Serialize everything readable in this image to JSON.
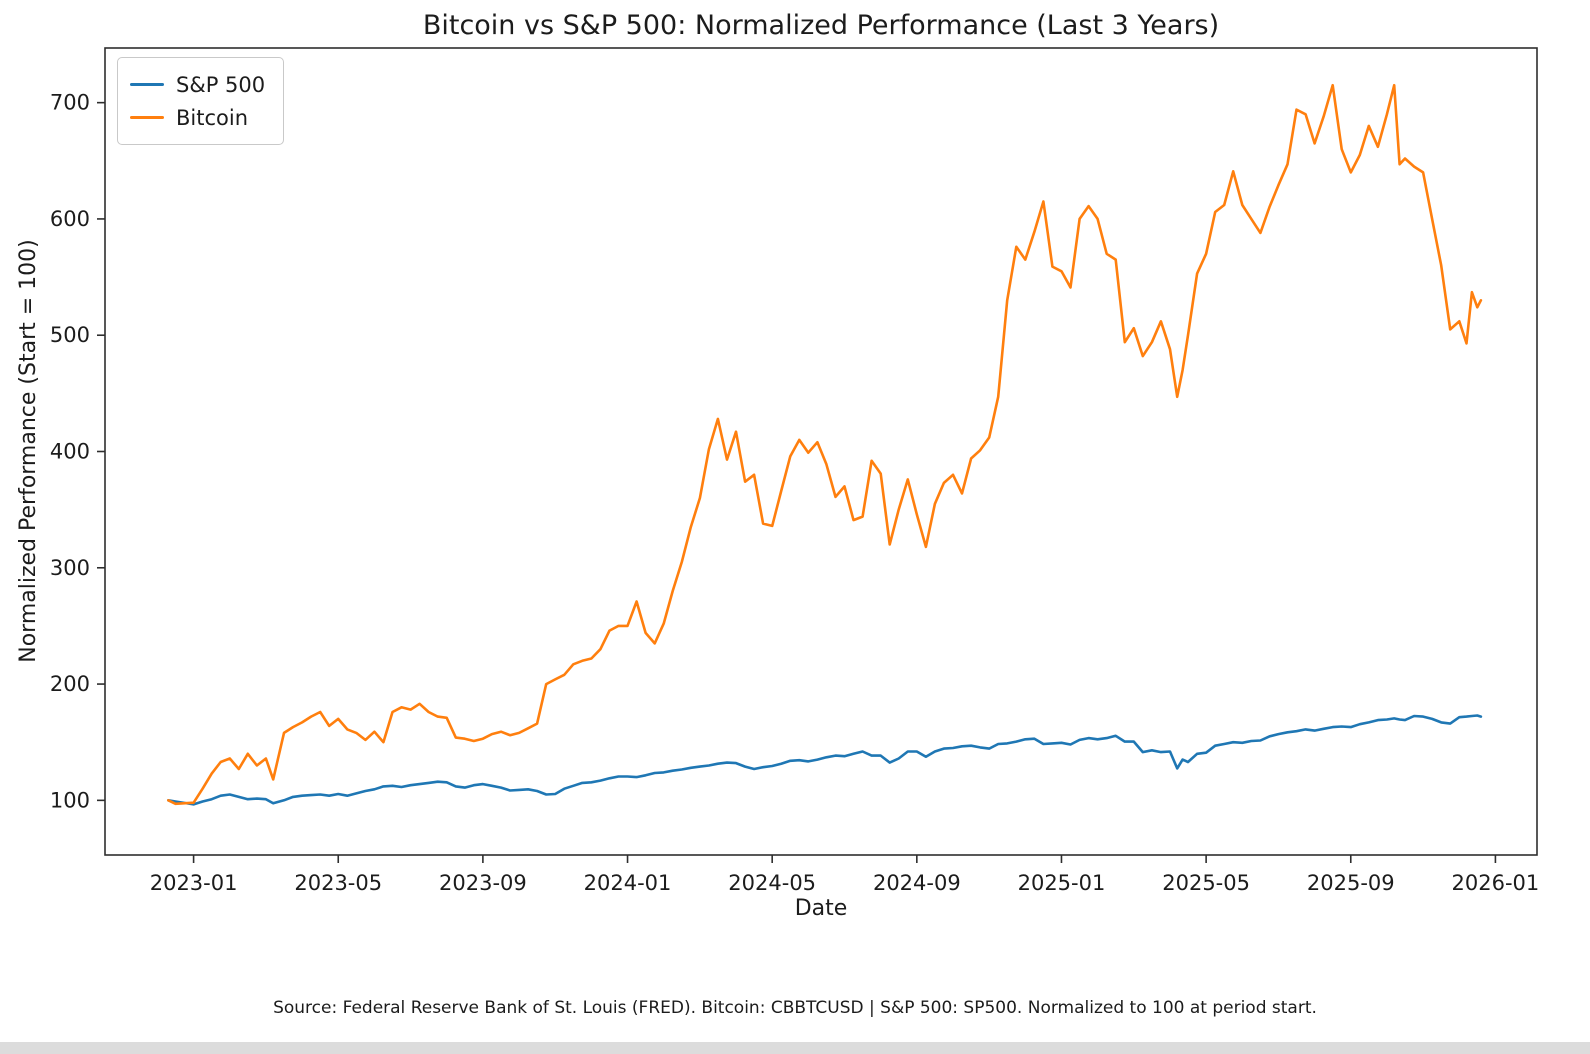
{
  "source_note": "Source: Federal Reserve Bank of St. Louis (FRED). Bitcoin: CBBTCUSD | S&P 500: SP500. Normalized to 100 at period start.",
  "colors": {
    "sp500_line": "#1f77b4",
    "bitcoin_line": "#ff7f0e",
    "axis": "#2e2e2e",
    "text": "#1c1c1c"
  },
  "chart_data": {
    "type": "line",
    "title": "Bitcoin vs S&P 500: Normalized Performance (Last 3 Years)",
    "xlabel": "Date",
    "ylabel": "Normalized Performance (Start = 100)",
    "grid": false,
    "legend_position": "upper left",
    "x_unit": "months since 2022-12-01",
    "xlim_months": [
      -1.45,
      38.15
    ],
    "ylim": [
      53,
      747
    ],
    "xticks": {
      "positions": [
        1,
        5,
        9,
        13,
        17,
        21,
        25,
        29,
        33,
        37
      ],
      "labels": [
        "2023-01",
        "2023-05",
        "2023-09",
        "2024-01",
        "2024-05",
        "2024-09",
        "2025-01",
        "2025-05",
        "2025-09",
        "2026-01"
      ]
    },
    "yticks": {
      "positions": [
        100,
        200,
        300,
        400,
        500,
        600,
        700
      ],
      "labels": [
        "100",
        "200",
        "300",
        "400",
        "500",
        "600",
        "700"
      ]
    },
    "x_months": [
      0.3,
      0.5,
      1.0,
      1.25,
      1.5,
      1.75,
      2.0,
      2.25,
      2.5,
      2.75,
      3.0,
      3.2,
      3.5,
      3.75,
      4.0,
      4.25,
      4.5,
      4.75,
      5.0,
      5.25,
      5.5,
      5.75,
      6.0,
      6.25,
      6.5,
      6.75,
      7.0,
      7.25,
      7.5,
      7.75,
      8.0,
      8.25,
      8.5,
      8.75,
      9.0,
      9.25,
      9.5,
      9.75,
      10.0,
      10.25,
      10.5,
      10.75,
      11.0,
      11.25,
      11.5,
      11.75,
      12.0,
      12.25,
      12.5,
      12.75,
      13.0,
      13.25,
      13.5,
      13.75,
      14.0,
      14.25,
      14.5,
      14.75,
      15.0,
      15.25,
      15.5,
      15.75,
      16.0,
      16.25,
      16.5,
      16.75,
      17.0,
      17.25,
      17.5,
      17.75,
      18.0,
      18.25,
      18.5,
      18.75,
      19.0,
      19.25,
      19.5,
      19.75,
      20.0,
      20.25,
      20.5,
      20.75,
      21.0,
      21.25,
      21.5,
      21.75,
      22.0,
      22.25,
      22.5,
      22.75,
      23.0,
      23.25,
      23.5,
      23.75,
      24.0,
      24.25,
      24.5,
      24.75,
      25.0,
      25.25,
      25.5,
      25.75,
      26.0,
      26.25,
      26.5,
      26.75,
      27.0,
      27.25,
      27.5,
      27.75,
      28.0,
      28.2,
      28.35,
      28.5,
      28.75,
      29.0,
      29.25,
      29.5,
      29.75,
      30.0,
      30.25,
      30.5,
      30.75,
      31.0,
      31.25,
      31.5,
      31.75,
      32.0,
      32.25,
      32.5,
      32.75,
      33.0,
      33.25,
      33.5,
      33.75,
      34.0,
      34.2,
      34.35,
      34.5,
      34.75,
      35.0,
      35.25,
      35.5,
      35.75,
      36.0,
      36.2,
      36.35,
      36.5,
      36.6
    ],
    "series": [
      {
        "name": "S&P 500",
        "color": "#1f77b4",
        "values": [
          100,
          99,
          96.5,
          99,
          101,
          104,
          105,
          103,
          101,
          101.5,
          101,
          97.5,
          100,
          103,
          104,
          104.5,
          105,
          104,
          105.5,
          104,
          106,
          108,
          109.5,
          112,
          112.5,
          111.5,
          113,
          114,
          115,
          116,
          115.5,
          112,
          111,
          113,
          114,
          112.5,
          111,
          108.5,
          109,
          109.5,
          108,
          105,
          105.5,
          110,
          112.5,
          115,
          115.5,
          117,
          119,
          120.5,
          120.5,
          120,
          121.5,
          123.5,
          124,
          125.5,
          126.5,
          128,
          129,
          130,
          131.5,
          132.5,
          132,
          129,
          127,
          128.5,
          129.5,
          131.5,
          134,
          134.5,
          133.5,
          135,
          137,
          138.5,
          138,
          140,
          142,
          138.5,
          138.5,
          132.5,
          136,
          142,
          142,
          137.5,
          142,
          144.5,
          145,
          146.5,
          147,
          145.5,
          144.5,
          148.5,
          149,
          150.5,
          152.5,
          153,
          148.5,
          149,
          149.5,
          148,
          152,
          153.5,
          152.5,
          153.5,
          155.5,
          150.5,
          150.5,
          141.5,
          143,
          141.5,
          142,
          127.5,
          135,
          133,
          140,
          141,
          147,
          148.5,
          150,
          149.5,
          151,
          151.5,
          155,
          157,
          158.5,
          159.5,
          161,
          160,
          161.5,
          163,
          163.5,
          163,
          165.5,
          167,
          169,
          169.5,
          170.5,
          169.5,
          169,
          172.5,
          172,
          170,
          167,
          166,
          171.5,
          172,
          172.5,
          173,
          172
        ]
      },
      {
        "name": "Bitcoin",
        "color": "#ff7f0e",
        "values": [
          100,
          97,
          98,
          110,
          123,
          133,
          136,
          127,
          140,
          130,
          136,
          118,
          158,
          163,
          167,
          172,
          176,
          164,
          170,
          161,
          158,
          152,
          159,
          150,
          176,
          180,
          178,
          183,
          176,
          172,
          171,
          154,
          153,
          151,
          153,
          157,
          159,
          156,
          158,
          162,
          166,
          200,
          204,
          208,
          217,
          220,
          222,
          230,
          246,
          250,
          250,
          271,
          244,
          235,
          252,
          280,
          305,
          335,
          360,
          402,
          428,
          393,
          417,
          374,
          380,
          338,
          336,
          366,
          396,
          410,
          399,
          408,
          389,
          361,
          370,
          341,
          344,
          392,
          381,
          320,
          350,
          376,
          346,
          318,
          355,
          373,
          380,
          364,
          394,
          401,
          412,
          447,
          530,
          576,
          565,
          589,
          615,
          559,
          555,
          541,
          600,
          611,
          600,
          570,
          565,
          494,
          506,
          482,
          494,
          512,
          488,
          447,
          470,
          500,
          553,
          570,
          606,
          612,
          641,
          612,
          600,
          588,
          610,
          629,
          647,
          694,
          690,
          665,
          688,
          715,
          660,
          640,
          655,
          680,
          662,
          690,
          715,
          647,
          652,
          645,
          640,
          600,
          560,
          505,
          512,
          493,
          537,
          524,
          530
        ]
      }
    ]
  }
}
